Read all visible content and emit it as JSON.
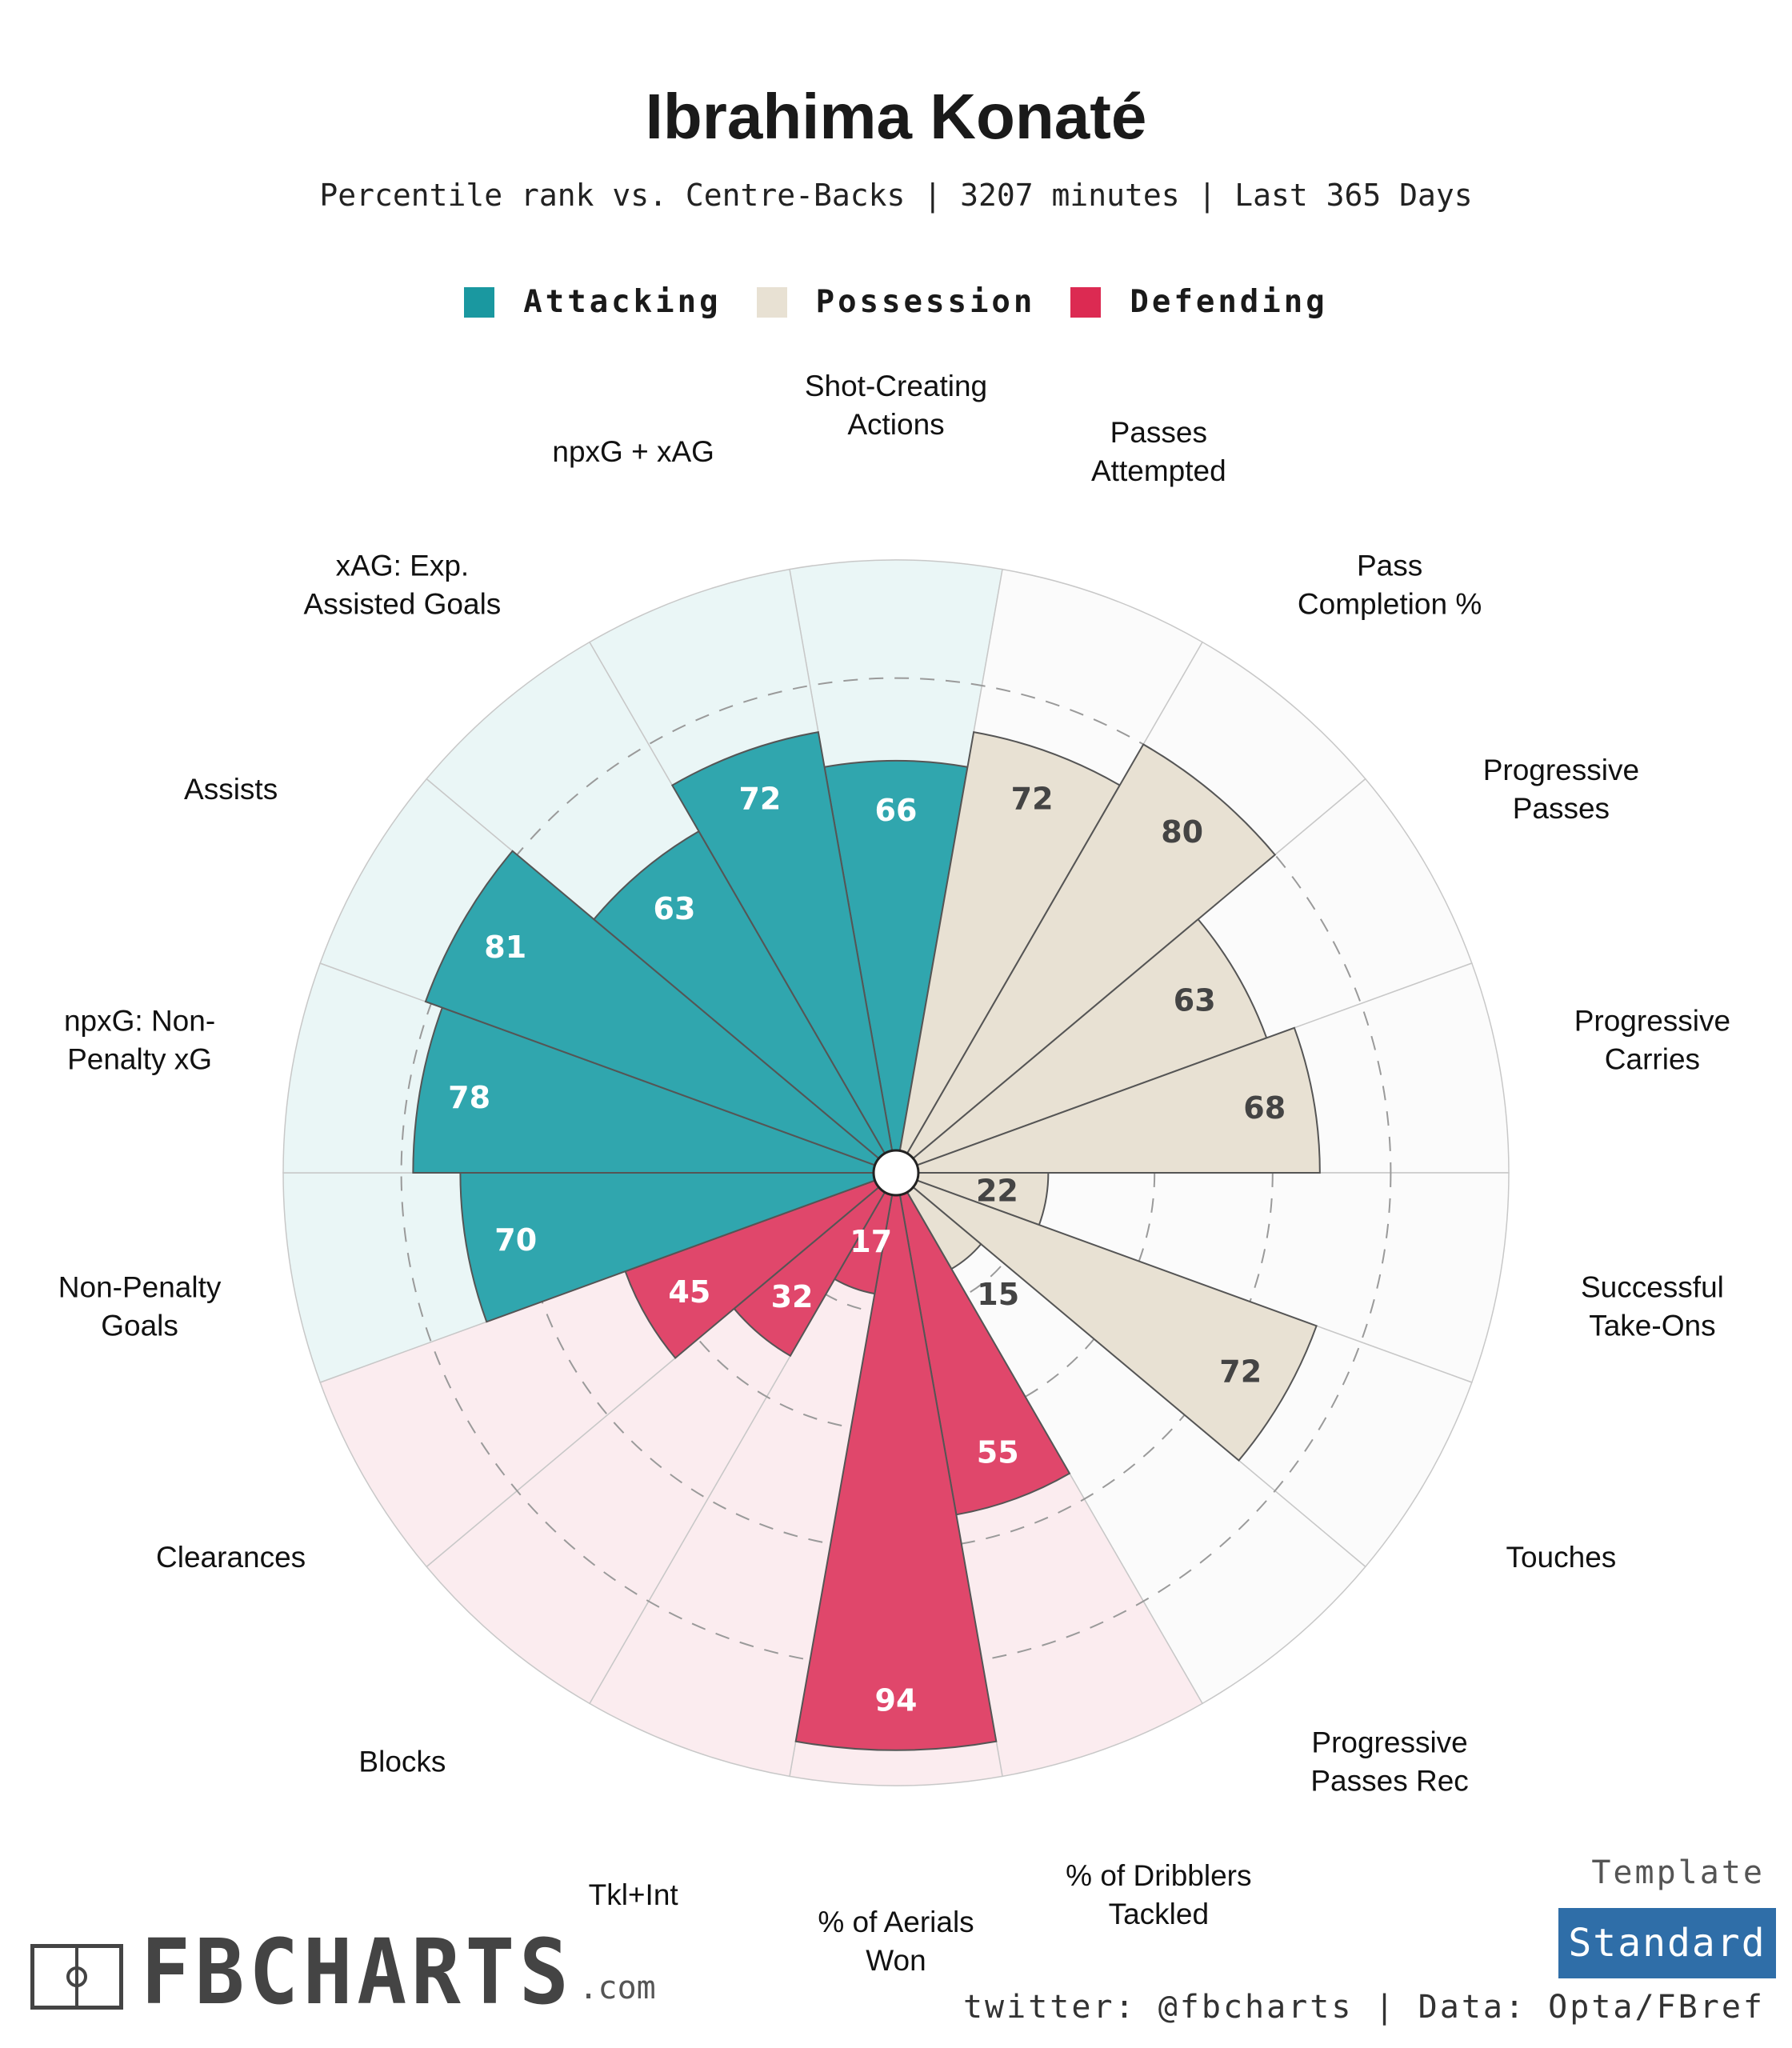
{
  "header": {
    "title": "Ibrahima Konaté",
    "subtitle": "Percentile rank vs. Centre-Backs | 3207 minutes | Last 365 Days"
  },
  "legend": [
    {
      "label": "Attacking",
      "color": "#1a98a0"
    },
    {
      "label": "Possession",
      "color": "#e8e1d3"
    },
    {
      "label": "Defending",
      "color": "#dc2a52"
    }
  ],
  "chart_data": {
    "type": "polar-bar",
    "range": [
      0,
      100
    ],
    "reference_rings": [
      20,
      40,
      60,
      80
    ],
    "groups": {
      "Attacking": {
        "fill": "#30a6ae",
        "background": "#eaf6f6",
        "value_text": "#ffffff"
      },
      "Possession": {
        "fill": "#e8e1d3",
        "background": "#fbfbfb",
        "value_text": "#444444"
      },
      "Defending": {
        "fill": "#e0476b",
        "background": "#fbecef",
        "value_text": "#ffffff"
      }
    },
    "categories": [
      {
        "label": [
          "Shot-Creating",
          "Actions"
        ],
        "value": 66,
        "group": "Attacking"
      },
      {
        "label": [
          "Passes",
          "Attempted"
        ],
        "value": 72,
        "group": "Possession"
      },
      {
        "label": [
          "Pass",
          "Completion %"
        ],
        "value": 80,
        "group": "Possession"
      },
      {
        "label": [
          "Progressive",
          "Passes"
        ],
        "value": 63,
        "group": "Possession"
      },
      {
        "label": [
          "Progressive",
          "Carries"
        ],
        "value": 68,
        "group": "Possession"
      },
      {
        "label": [
          "Successful",
          "Take-Ons"
        ],
        "value": 22,
        "group": "Possession"
      },
      {
        "label": [
          "Touches"
        ],
        "value": 72,
        "group": "Possession"
      },
      {
        "label": [
          "Progressive",
          "Passes Rec"
        ],
        "value": 15,
        "group": "Possession"
      },
      {
        "label": [
          "% of Dribblers",
          "Tackled"
        ],
        "value": 55,
        "group": "Defending"
      },
      {
        "label": [
          "% of Aerials",
          "Won"
        ],
        "value": 94,
        "group": "Defending"
      },
      {
        "label": [
          "Tkl+Int"
        ],
        "value": 17,
        "group": "Defending"
      },
      {
        "label": [
          "Blocks"
        ],
        "value": 32,
        "group": "Defending"
      },
      {
        "label": [
          "Clearances"
        ],
        "value": 45,
        "group": "Defending"
      },
      {
        "label": [
          "Non-Penalty",
          "Goals"
        ],
        "value": 70,
        "group": "Attacking"
      },
      {
        "label": [
          "npxG: Non-",
          "Penalty xG"
        ],
        "value": 78,
        "group": "Attacking"
      },
      {
        "label": [
          "Assists"
        ],
        "value": 81,
        "group": "Attacking"
      },
      {
        "label": [
          "xAG: Exp.",
          "Assisted Goals"
        ],
        "value": 63,
        "group": "Attacking"
      },
      {
        "label": [
          "npxG + xAG"
        ],
        "value": 72,
        "group": "Attacking"
      }
    ]
  },
  "footer": {
    "template_label": "Template",
    "template_value": "Standard",
    "logo_text": "FBCHARTS",
    "logo_suffix": ".com",
    "credit": "twitter: @fbcharts | Data: Opta/FBref"
  }
}
